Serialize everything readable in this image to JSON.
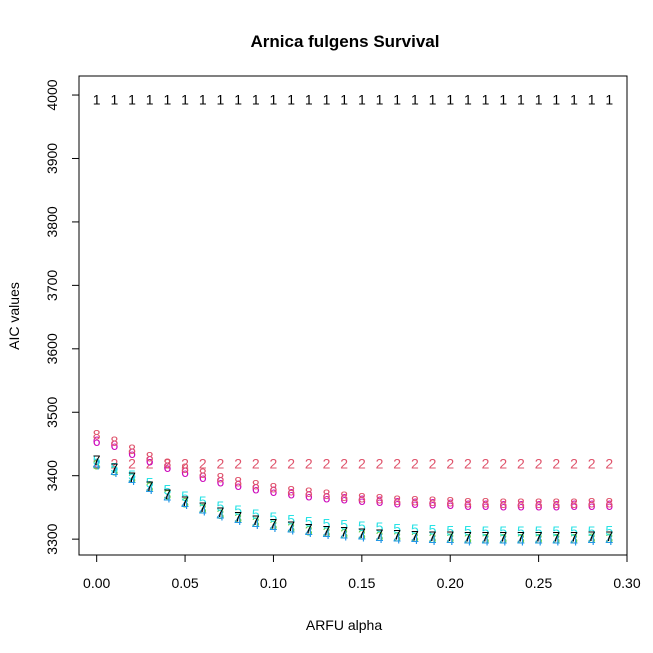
{
  "chart_data": {
    "type": "scatter",
    "title": "Arnica fulgens Survival",
    "xlabel": "ARFU alpha",
    "ylabel": "AIC values",
    "xlim": [
      -0.01,
      0.3
    ],
    "ylim": [
      3275,
      4030
    ],
    "xticks": [
      0.0,
      0.05,
      0.1,
      0.15,
      0.2,
      0.25,
      0.3
    ],
    "xtick_labels": [
      "0.00",
      "0.05",
      "0.10",
      "0.15",
      "0.20",
      "0.25",
      "0.30"
    ],
    "yticks": [
      3300,
      3400,
      3500,
      3600,
      3700,
      3800,
      3900,
      4000
    ],
    "ytick_labels": [
      "3300",
      "3400",
      "3500",
      "3600",
      "3700",
      "3800",
      "3900",
      "4000"
    ],
    "grid": false,
    "x": [
      0.0,
      0.01,
      0.02,
      0.03,
      0.04,
      0.05,
      0.06,
      0.07,
      0.08,
      0.09,
      0.1,
      0.11,
      0.12,
      0.13,
      0.14,
      0.15,
      0.16,
      0.17,
      0.18,
      0.19,
      0.2,
      0.21,
      0.22,
      0.23,
      0.24,
      0.25,
      0.26,
      0.27,
      0.28,
      0.29
    ],
    "series": [
      {
        "symbol": "1",
        "color": "#000000",
        "values": [
          3993,
          3993,
          3993,
          3993,
          3993,
          3993,
          3993,
          3993,
          3993,
          3993,
          3993,
          3993,
          3993,
          3993,
          3993,
          3993,
          3993,
          3993,
          3993,
          3993,
          3993,
          3993,
          3993,
          3993,
          3993,
          3993,
          3993,
          3993,
          3993,
          3993
        ]
      },
      {
        "symbol": "2",
        "color": "#DF536B",
        "values": [
          3419,
          3419,
          3419,
          3419,
          3419,
          3419,
          3419,
          3419,
          3419,
          3419,
          3419,
          3419,
          3419,
          3419,
          3419,
          3419,
          3419,
          3419,
          3419,
          3419,
          3419,
          3419,
          3419,
          3419,
          3419,
          3419,
          3419,
          3419,
          3419,
          3419
        ]
      },
      {
        "symbol": "3",
        "color": "#61D04F",
        "values": [
          3418,
          3408,
          3396,
          3382,
          3370,
          3358,
          3348,
          3340,
          3333,
          3327,
          3322,
          3318,
          3314,
          3311,
          3309,
          3307,
          3305,
          3304,
          3303,
          3302,
          3302,
          3301,
          3301,
          3301,
          3301,
          3301,
          3301,
          3301,
          3302,
          3302
        ]
      },
      {
        "symbol": "4",
        "color": "#2297E6",
        "values": [
          3418,
          3406,
          3393,
          3379,
          3366,
          3355,
          3345,
          3337,
          3330,
          3324,
          3319,
          3315,
          3311,
          3308,
          3306,
          3304,
          3302,
          3301,
          3300,
          3299,
          3299,
          3298,
          3298,
          3298,
          3298,
          3298,
          3298,
          3298,
          3299,
          3299
        ]
      },
      {
        "symbol": "5",
        "color": "#28E2E5",
        "values": [
          3425,
          3413,
          3401,
          3389,
          3378,
          3368,
          3360,
          3352,
          3346,
          3340,
          3335,
          3331,
          3328,
          3325,
          3323,
          3321,
          3319,
          3317,
          3316,
          3315,
          3314,
          3314,
          3313,
          3313,
          3313,
          3313,
          3313,
          3313,
          3313,
          3314
        ]
      },
      {
        "symbol": "6",
        "color": "#CD0BBC",
        "values": [
          3455,
          3448,
          3436,
          3424,
          3414,
          3406,
          3398,
          3391,
          3385,
          3380,
          3376,
          3372,
          3369,
          3366,
          3364,
          3362,
          3360,
          3358,
          3357,
          3356,
          3355,
          3354,
          3354,
          3353,
          3353,
          3353,
          3353,
          3354,
          3354,
          3354
        ]
      },
      {
        "symbol": "7",
        "color": "#000000",
        "values": [
          3425,
          3412,
          3398,
          3384,
          3371,
          3360,
          3351,
          3343,
          3336,
          3330,
          3325,
          3321,
          3317,
          3314,
          3312,
          3310,
          3308,
          3307,
          3306,
          3305,
          3305,
          3304,
          3304,
          3304,
          3304,
          3304,
          3304,
          3304,
          3305,
          3305
        ]
      },
      {
        "symbol": "8",
        "color": "#DF536B",
        "values": [
          3465,
          3455,
          3442,
          3430,
          3420,
          3412,
          3404,
          3397,
          3391,
          3386,
          3381,
          3377,
          3374,
          3371,
          3368,
          3366,
          3364,
          3362,
          3361,
          3360,
          3359,
          3358,
          3358,
          3357,
          3357,
          3357,
          3357,
          3357,
          3358,
          3358
        ]
      }
    ]
  }
}
